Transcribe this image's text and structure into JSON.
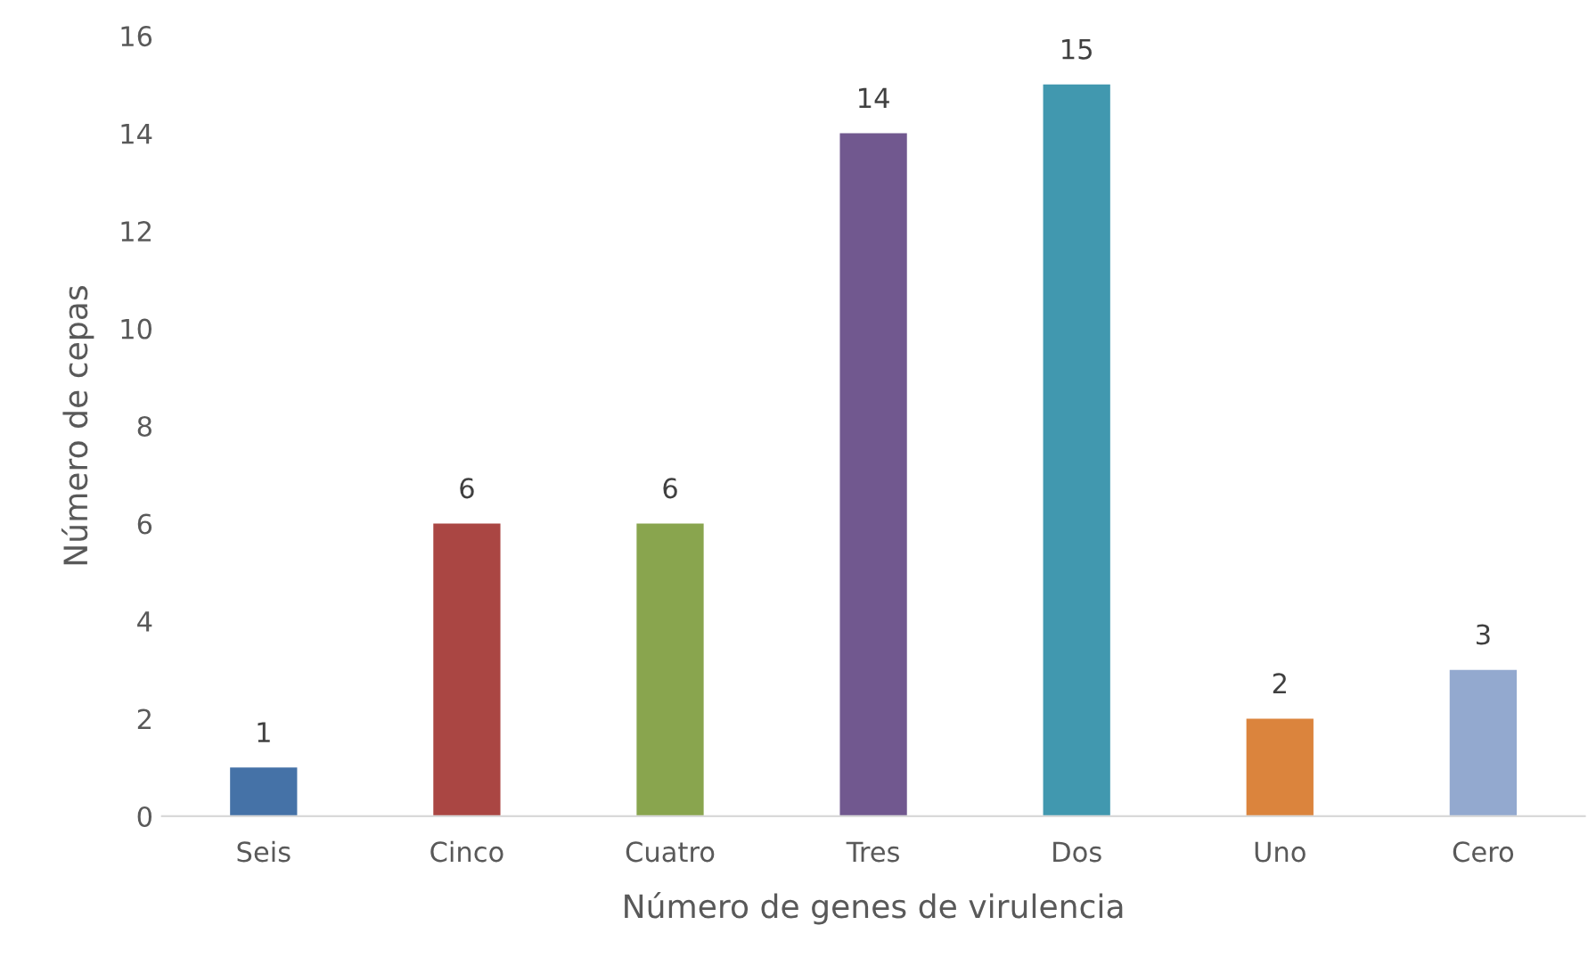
{
  "chart_data": {
    "type": "bar",
    "xlabel": "Número de genes de virulencia",
    "ylabel": "Número de cepas",
    "categories": [
      "Seis",
      "Cinco",
      "Cuatro",
      "Tres",
      "Dos",
      "Uno",
      "Cero"
    ],
    "values": [
      1,
      6,
      6,
      14,
      15,
      2,
      3
    ],
    "colors": [
      "#4572a7",
      "#aa4643",
      "#89a54e",
      "#71588f",
      "#4198af",
      "#db843d",
      "#93a9cf"
    ],
    "ylim": [
      0,
      16
    ],
    "yticks": [
      0,
      2,
      4,
      6,
      8,
      10,
      12,
      14,
      16
    ],
    "grid": false,
    "data_labels": true
  }
}
